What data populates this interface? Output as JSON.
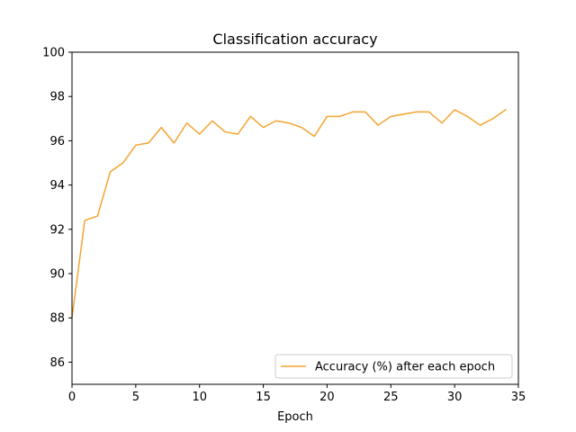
{
  "chart_data": {
    "type": "line",
    "title": "Classification accuracy",
    "xlabel": "Epoch",
    "ylabel": "",
    "xlim": [
      0,
      35
    ],
    "ylim": [
      85,
      100
    ],
    "xticks": [
      0,
      5,
      10,
      15,
      20,
      25,
      30,
      35
    ],
    "yticks": [
      86,
      88,
      90,
      92,
      94,
      96,
      98,
      100
    ],
    "grid": false,
    "legend_position": "lower right",
    "series": [
      {
        "name": "Accuracy (%) after each epoch",
        "color": "#f5a431",
        "x": [
          0,
          1,
          2,
          3,
          4,
          5,
          6,
          7,
          8,
          9,
          10,
          11,
          12,
          13,
          14,
          15,
          16,
          17,
          18,
          19,
          20,
          21,
          22,
          23,
          24,
          25,
          26,
          27,
          28,
          29,
          30,
          31,
          32,
          33,
          34
        ],
        "values": [
          88.0,
          92.4,
          92.6,
          94.6,
          95.0,
          95.8,
          95.9,
          96.6,
          95.9,
          96.8,
          96.3,
          96.9,
          96.4,
          96.3,
          97.1,
          96.6,
          96.9,
          96.8,
          96.6,
          96.2,
          97.1,
          97.1,
          97.3,
          97.3,
          96.7,
          97.1,
          97.2,
          97.3,
          97.3,
          96.8,
          97.4,
          97.1,
          96.7,
          97.0,
          97.4
        ]
      }
    ]
  }
}
